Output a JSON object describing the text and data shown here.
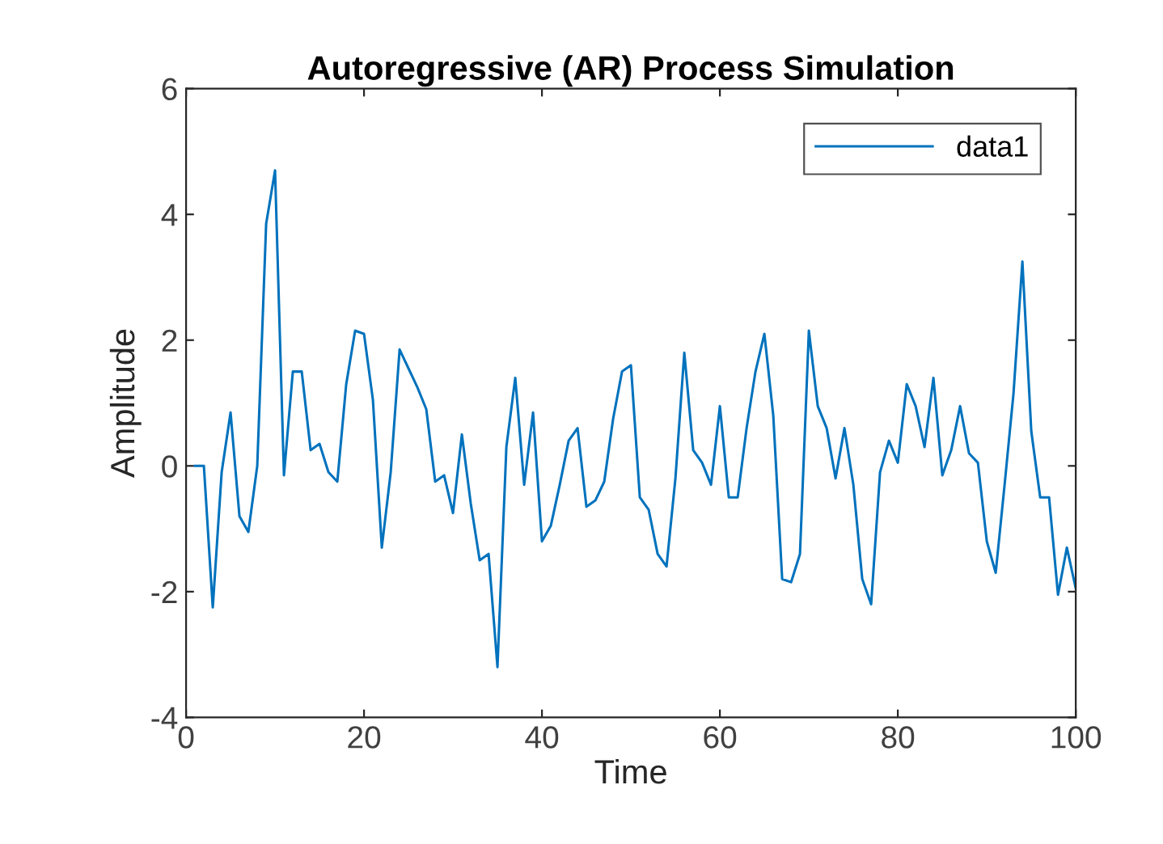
{
  "chart_data": {
    "type": "line",
    "title": "Autoregressive (AR) Process Simulation",
    "xlabel": "Time",
    "ylabel": "Amplitude",
    "x": [
      1,
      2,
      3,
      4,
      5,
      6,
      7,
      8,
      9,
      10,
      11,
      12,
      13,
      14,
      15,
      16,
      17,
      18,
      19,
      20,
      21,
      22,
      23,
      24,
      25,
      26,
      27,
      28,
      29,
      30,
      31,
      32,
      33,
      34,
      35,
      36,
      37,
      38,
      39,
      40,
      41,
      42,
      43,
      44,
      45,
      46,
      47,
      48,
      49,
      50,
      51,
      52,
      53,
      54,
      55,
      56,
      57,
      58,
      59,
      60,
      61,
      62,
      63,
      64,
      65,
      66,
      67,
      68,
      69,
      70,
      71,
      72,
      73,
      74,
      75,
      76,
      77,
      78,
      79,
      80,
      81,
      82,
      83,
      84,
      85,
      86,
      87,
      88,
      89,
      90,
      91,
      92,
      93,
      94,
      95,
      96,
      97,
      98,
      99,
      100
    ],
    "series": [
      {
        "name": "data1",
        "color": "#0072bd",
        "values": [
          0,
          0,
          -2.25,
          -0.1,
          0.85,
          -0.8,
          -1.05,
          0,
          3.85,
          4.7,
          -0.15,
          1.5,
          1.5,
          0.25,
          0.35,
          -0.1,
          -0.25,
          1.3,
          2.15,
          2.1,
          1.05,
          -1.3,
          -0.1,
          1.85,
          1.55,
          1.25,
          0.9,
          -0.25,
          -0.15,
          -0.75,
          0.5,
          -0.6,
          -1.5,
          -1.4,
          -3.2,
          0.3,
          1.4,
          -0.3,
          0.85,
          -1.2,
          -0.95,
          -0.3,
          0.4,
          0.6,
          -0.65,
          -0.55,
          -0.25,
          0.75,
          1.5,
          1.6,
          -0.5,
          -0.7,
          -1.4,
          -1.6,
          -0.2,
          1.8,
          0.25,
          0.05,
          -0.3,
          0.95,
          -0.5,
          -0.5,
          0.6,
          1.5,
          2.1,
          0.8,
          -1.8,
          -1.85,
          -1.4,
          2.15,
          0.95,
          0.6,
          -0.2,
          0.6,
          -0.3,
          -1.8,
          -2.2,
          -0.1,
          0.4,
          0.05,
          1.3,
          0.95,
          0.3,
          1.4,
          -0.15,
          0.25,
          0.95,
          0.2,
          0.05,
          -1.2,
          -1.7,
          -0.3,
          1.15,
          3.25,
          0.55,
          -0.5,
          -0.5,
          -2.05,
          -1.3,
          -1.95
        ]
      }
    ],
    "xlim": [
      0,
      100
    ],
    "xticks": [
      0,
      20,
      40,
      60,
      80,
      100
    ],
    "ylim": [
      -4,
      6
    ],
    "yticks": [
      -4,
      -2,
      0,
      2,
      4,
      6
    ],
    "legend": "top right",
    "grid": false,
    "marker": "none",
    "line_style": "solid"
  }
}
